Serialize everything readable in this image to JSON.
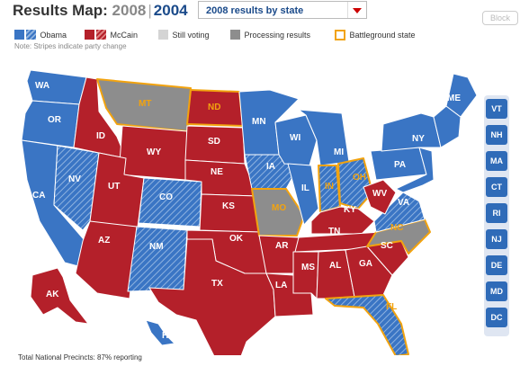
{
  "header": {
    "title_prefix": "Results Map:",
    "year_2008": "2008",
    "separator": "|",
    "year_2004": "2004",
    "dropdown_value": "2008 results by state",
    "block_button": "Block"
  },
  "legend": {
    "obama": "Obama",
    "mccain": "McCain",
    "still_voting": "Still voting",
    "processing": "Processing results",
    "battleground": "Battleground state",
    "note": "Note: Stripes indicate party change"
  },
  "colors": {
    "obama": "#3a75c4",
    "mccain": "#b4202a",
    "still_voting": "#d4d4d4",
    "processing": "#8d8d8d",
    "battleground": "#f2a30f"
  },
  "states": {
    "WA": "WA",
    "OR": "OR",
    "CA": "CA",
    "NV": "NV",
    "ID": "ID",
    "MT": "MT",
    "WY": "WY",
    "UT": "UT",
    "AZ": "AZ",
    "CO": "CO",
    "NM": "NM",
    "ND": "ND",
    "SD": "SD",
    "NE": "NE",
    "KS": "KS",
    "OK": "OK",
    "TX": "TX",
    "MN": "MN",
    "IA": "IA",
    "MO": "MO",
    "AR": "AR",
    "LA": "LA",
    "WI": "WI",
    "IL": "IL",
    "MS": "MS",
    "MI": "MI",
    "IN": "IN",
    "OH": "OH",
    "KY": "KY",
    "TN": "TN",
    "AL": "AL",
    "GA": "GA",
    "FL": "FL",
    "SC": "SC",
    "NC": "NC",
    "VA": "VA",
    "WV": "WV",
    "PA": "PA",
    "NY": "NY",
    "ME": "ME",
    "AK": "AK",
    "HI": "HI"
  },
  "sidebar": [
    "VT",
    "NH",
    "MA",
    "CT",
    "RI",
    "NJ",
    "DE",
    "MD",
    "DC"
  ],
  "footer": "Total National Precincts: 87% reporting"
}
